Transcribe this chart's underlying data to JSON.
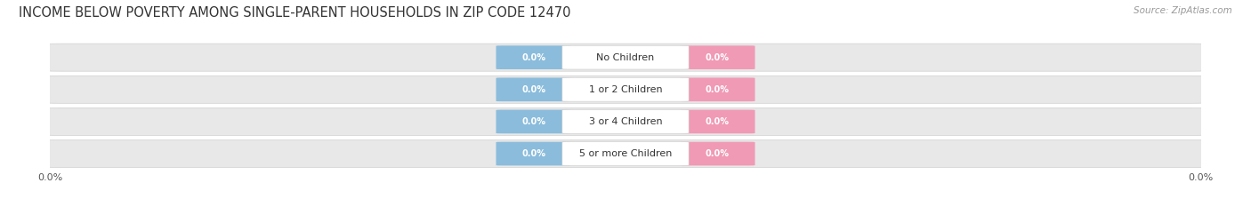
{
  "title": "INCOME BELOW POVERTY AMONG SINGLE-PARENT HOUSEHOLDS IN ZIP CODE 12470",
  "source": "Source: ZipAtlas.com",
  "categories": [
    "No Children",
    "1 or 2 Children",
    "3 or 4 Children",
    "5 or more Children"
  ],
  "single_father_values": [
    0.0,
    0.0,
    0.0,
    0.0
  ],
  "single_mother_values": [
    0.0,
    0.0,
    0.0,
    0.0
  ],
  "father_color": "#8BBCDC",
  "mother_color": "#F09AB5",
  "title_fontsize": 10.5,
  "source_fontsize": 7.5,
  "value_fontsize": 7,
  "category_fontsize": 8,
  "legend_fontsize": 8,
  "axis_label_fontsize": 8,
  "xlim": [
    -1.0,
    1.0
  ],
  "background_color": "#FFFFFF",
  "row_pill_color": "#E8E8E8",
  "row_pill_edge_color": "#D0D0D0",
  "center_box_color": "#FFFFFF",
  "center_box_edge": "#CCCCCC"
}
